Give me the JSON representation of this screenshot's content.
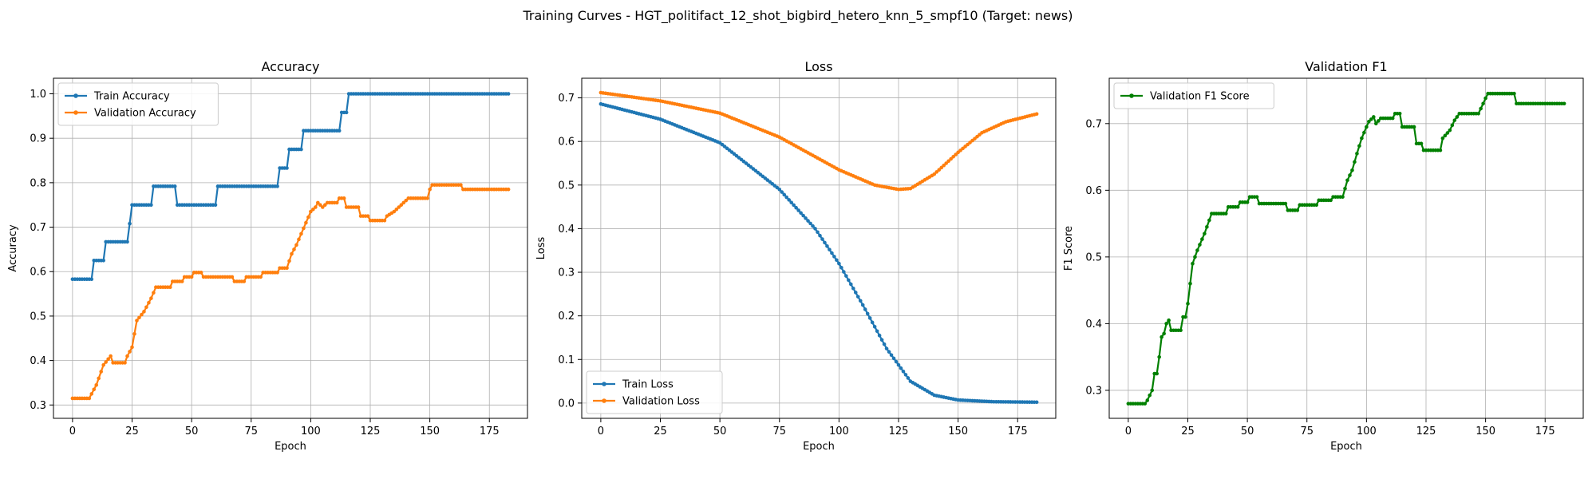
{
  "figure": {
    "title": "Training Curves - HGT_politifact_12_shot_bigbird_hetero_knn_5_smpf10 (Target: news)"
  },
  "chart_data": [
    {
      "type": "line",
      "title": "Accuracy",
      "xlabel": "Epoch",
      "ylabel": "Accuracy",
      "xlim": [
        -8,
        191
      ],
      "ylim": [
        0.27,
        1.035
      ],
      "xticks": [
        0,
        25,
        50,
        75,
        100,
        125,
        150,
        175
      ],
      "yticks": [
        0.3,
        0.4,
        0.5,
        0.6,
        0.7,
        0.8,
        0.9,
        1.0
      ],
      "ytick_labels": [
        "0.3",
        "0.4",
        "0.5",
        "0.6",
        "0.7",
        "0.8",
        "0.9",
        "1.0"
      ],
      "grid": true,
      "legend_position": "upper-left",
      "series": [
        {
          "name": "Train Accuracy",
          "color": "#1f77b4",
          "segments": [
            [
              0,
              9,
              0.583
            ],
            [
              9,
              14,
              0.625
            ],
            [
              14,
              24,
              0.667
            ],
            [
              24,
              25,
              0.708
            ],
            [
              25,
              34,
              0.75
            ],
            [
              34,
              44,
              0.792
            ],
            [
              44,
              61,
              0.75
            ],
            [
              61,
              87,
              0.792
            ],
            [
              87,
              91,
              0.833
            ],
            [
              91,
              97,
              0.875
            ],
            [
              97,
              113,
              0.917
            ],
            [
              113,
              116,
              0.958
            ],
            [
              116,
              183,
              1.0
            ]
          ]
        },
        {
          "name": "Validation Accuracy",
          "color": "#ff7f0e",
          "points": [
            [
              0,
              0.315
            ],
            [
              7,
              0.315
            ],
            [
              10,
              0.345
            ],
            [
              11,
              0.36
            ],
            [
              12,
              0.375
            ],
            [
              13,
              0.39
            ],
            [
              16,
              0.41
            ],
            [
              17,
              0.395
            ],
            [
              22,
              0.395
            ],
            [
              23,
              0.41
            ],
            [
              25,
              0.43
            ],
            [
              26,
              0.46
            ],
            [
              27,
              0.49
            ],
            [
              30,
              0.51
            ],
            [
              33,
              0.54
            ],
            [
              35,
              0.565
            ],
            [
              41,
              0.565
            ],
            [
              42,
              0.578
            ],
            [
              46,
              0.578
            ],
            [
              47,
              0.588
            ],
            [
              50,
              0.588
            ],
            [
              51,
              0.598
            ],
            [
              54,
              0.598
            ],
            [
              55,
              0.588
            ],
            [
              67,
              0.588
            ],
            [
              68,
              0.578
            ],
            [
              72,
              0.578
            ],
            [
              73,
              0.588
            ],
            [
              79,
              0.588
            ],
            [
              80,
              0.598
            ],
            [
              86,
              0.598
            ],
            [
              87,
              0.608
            ],
            [
              90,
              0.608
            ],
            [
              92,
              0.64
            ],
            [
              94,
              0.66
            ],
            [
              96,
              0.685
            ],
            [
              98,
              0.71
            ],
            [
              100,
              0.735
            ],
            [
              102,
              0.745
            ],
            [
              103,
              0.755
            ],
            [
              105,
              0.745
            ],
            [
              107,
              0.755
            ],
            [
              111,
              0.755
            ],
            [
              112,
              0.765
            ],
            [
              114,
              0.765
            ],
            [
              115,
              0.745
            ],
            [
              120,
              0.745
            ],
            [
              121,
              0.725
            ],
            [
              124,
              0.725
            ],
            [
              125,
              0.715
            ],
            [
              131,
              0.715
            ],
            [
              132,
              0.725
            ],
            [
              135,
              0.735
            ],
            [
              137,
              0.745
            ],
            [
              139,
              0.755
            ],
            [
              141,
              0.765
            ],
            [
              149,
              0.765
            ],
            [
              150,
              0.785
            ],
            [
              151,
              0.795
            ],
            [
              163,
              0.795
            ],
            [
              164,
              0.785
            ],
            [
              183,
              0.785
            ]
          ]
        }
      ]
    },
    {
      "type": "line",
      "title": "Loss",
      "xlabel": "Epoch",
      "ylabel": "Loss",
      "xlim": [
        -8,
        191
      ],
      "ylim": [
        -0.035,
        0.745
      ],
      "xticks": [
        0,
        25,
        50,
        75,
        100,
        125,
        150,
        175
      ],
      "yticks": [
        0.0,
        0.1,
        0.2,
        0.3,
        0.4,
        0.5,
        0.6,
        0.7
      ],
      "ytick_labels": [
        "0.0",
        "0.1",
        "0.2",
        "0.3",
        "0.4",
        "0.5",
        "0.6",
        "0.7"
      ],
      "grid": true,
      "legend_position": "lower-left",
      "series": [
        {
          "name": "Train Loss",
          "color": "#1f77b4",
          "points": [
            [
              0,
              0.686
            ],
            [
              25,
              0.651
            ],
            [
              50,
              0.597
            ],
            [
              75,
              0.49
            ],
            [
              90,
              0.4
            ],
            [
              100,
              0.32
            ],
            [
              110,
              0.225
            ],
            [
              120,
              0.125
            ],
            [
              130,
              0.05
            ],
            [
              140,
              0.018
            ],
            [
              150,
              0.007
            ],
            [
              165,
              0.003
            ],
            [
              183,
              0.002
            ]
          ]
        },
        {
          "name": "Validation Loss",
          "color": "#ff7f0e",
          "points": [
            [
              0,
              0.712
            ],
            [
              25,
              0.693
            ],
            [
              50,
              0.665
            ],
            [
              75,
              0.61
            ],
            [
              100,
              0.535
            ],
            [
              115,
              0.5
            ],
            [
              125,
              0.49
            ],
            [
              130,
              0.492
            ],
            [
              140,
              0.525
            ],
            [
              150,
              0.575
            ],
            [
              160,
              0.62
            ],
            [
              170,
              0.645
            ],
            [
              183,
              0.663
            ]
          ]
        }
      ]
    },
    {
      "type": "line",
      "title": "Validation F1",
      "xlabel": "Epoch",
      "ylabel": "F1 Score",
      "xlim": [
        -8,
        191
      ],
      "ylim": [
        0.258,
        0.768
      ],
      "xticks": [
        0,
        25,
        50,
        75,
        100,
        125,
        150,
        175
      ],
      "yticks": [
        0.3,
        0.4,
        0.5,
        0.6,
        0.7
      ],
      "ytick_labels": [
        "0.3",
        "0.4",
        "0.5",
        "0.6",
        "0.7"
      ],
      "grid": true,
      "legend_position": "upper-left",
      "series": [
        {
          "name": "Validation F1 Score",
          "color": "#008000",
          "points": [
            [
              0,
              0.28
            ],
            [
              7,
              0.28
            ],
            [
              8,
              0.285
            ],
            [
              10,
              0.3
            ],
            [
              11,
              0.325
            ],
            [
              12,
              0.325
            ],
            [
              13,
              0.35
            ],
            [
              14,
              0.38
            ],
            [
              15,
              0.385
            ],
            [
              16,
              0.4
            ],
            [
              17,
              0.405
            ],
            [
              18,
              0.39
            ],
            [
              22,
              0.39
            ],
            [
              23,
              0.41
            ],
            [
              24,
              0.41
            ],
            [
              25,
              0.43
            ],
            [
              26,
              0.46
            ],
            [
              27,
              0.49
            ],
            [
              29,
              0.51
            ],
            [
              32,
              0.535
            ],
            [
              34,
              0.555
            ],
            [
              35,
              0.565
            ],
            [
              41,
              0.565
            ],
            [
              42,
              0.575
            ],
            [
              46,
              0.575
            ],
            [
              47,
              0.582
            ],
            [
              50,
              0.582
            ],
            [
              51,
              0.59
            ],
            [
              54,
              0.59
            ],
            [
              55,
              0.58
            ],
            [
              66,
              0.58
            ],
            [
              67,
              0.57
            ],
            [
              71,
              0.57
            ],
            [
              72,
              0.578
            ],
            [
              79,
              0.578
            ],
            [
              80,
              0.585
            ],
            [
              85,
              0.585
            ],
            [
              86,
              0.59
            ],
            [
              90,
              0.59
            ],
            [
              92,
              0.615
            ],
            [
              94,
              0.63
            ],
            [
              96,
              0.655
            ],
            [
              98,
              0.678
            ],
            [
              100,
              0.695
            ],
            [
              101,
              0.703
            ],
            [
              103,
              0.71
            ],
            [
              104,
              0.7
            ],
            [
              106,
              0.708
            ],
            [
              111,
              0.708
            ],
            [
              112,
              0.715
            ],
            [
              114,
              0.715
            ],
            [
              115,
              0.695
            ],
            [
              120,
              0.695
            ],
            [
              121,
              0.67
            ],
            [
              123,
              0.67
            ],
            [
              124,
              0.66
            ],
            [
              131,
              0.66
            ],
            [
              132,
              0.678
            ],
            [
              135,
              0.69
            ],
            [
              137,
              0.705
            ],
            [
              139,
              0.715
            ],
            [
              147,
              0.715
            ],
            [
              149,
              0.73
            ],
            [
              150,
              0.738
            ],
            [
              151,
              0.745
            ],
            [
              162,
              0.745
            ],
            [
              163,
              0.73
            ],
            [
              183,
              0.73
            ]
          ]
        }
      ]
    }
  ]
}
